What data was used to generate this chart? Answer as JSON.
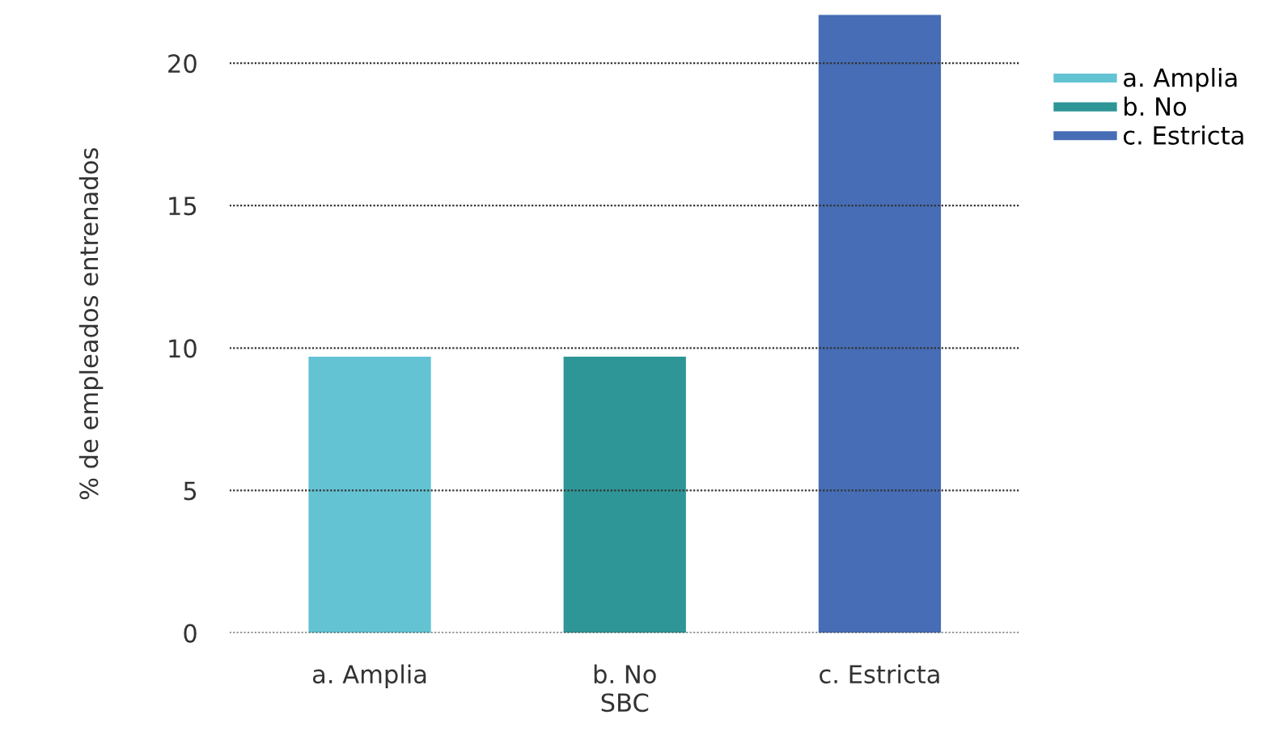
{
  "chart_data": {
    "type": "bar",
    "ylabel": "% de empleados entrenados",
    "xlabel": "SBC",
    "categories": [
      "a. Amplia",
      "b. No",
      "c. Estricta"
    ],
    "series": [
      {
        "name": "a. Amplia",
        "color": "#63c3d3",
        "values": [
          9.7,
          null,
          null
        ]
      },
      {
        "name": "b. No",
        "color": "#2e9696",
        "values": [
          null,
          9.7,
          null
        ]
      },
      {
        "name": "c. Estricta",
        "color": "#466db5",
        "values": [
          null,
          null,
          21.7
        ]
      }
    ],
    "ylim": [
      0,
      21.7
    ],
    "yticks": [
      0,
      5,
      10,
      15,
      20
    ],
    "grid": "y",
    "legend": "right"
  }
}
